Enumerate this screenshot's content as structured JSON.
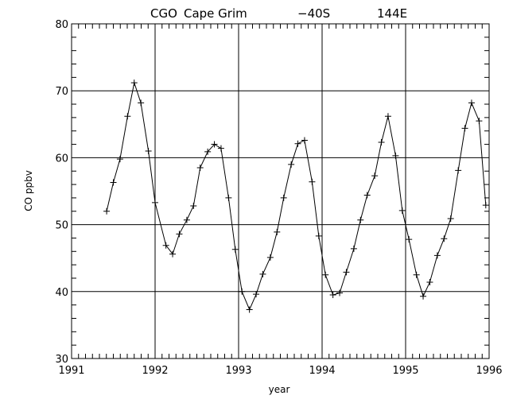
{
  "chart_data": {
    "type": "line",
    "title": {
      "station": "CGO",
      "name": "Cape Grim",
      "lat": "−40S",
      "lon": "144E"
    },
    "xlabel": "year",
    "ylabel": "CO ppbv",
    "xlim": [
      1991,
      1996
    ],
    "ylim": [
      30,
      80
    ],
    "xticks": [
      1991,
      1992,
      1993,
      1994,
      1995,
      1996
    ],
    "yticks": [
      30,
      40,
      50,
      60,
      70,
      80
    ],
    "xtick_labels": [
      "1991",
      "1992",
      "1993",
      "1994",
      "1995",
      "1996"
    ],
    "ytick_labels": [
      "30",
      "40",
      "50",
      "60",
      "70",
      "80"
    ],
    "grid": true,
    "marker": "plus",
    "series": [
      {
        "color": "#000000",
        "x": [
          1991.42,
          1991.5,
          1991.58,
          1991.67,
          1991.75,
          1991.83,
          1991.92,
          1992.0,
          1992.13,
          1992.21,
          1992.29,
          1992.38,
          1992.46,
          1992.54,
          1992.63,
          1992.71,
          1992.79,
          1992.88,
          1992.96,
          1993.04,
          1993.13,
          1993.21,
          1993.29,
          1993.38,
          1993.46,
          1993.54,
          1993.63,
          1993.71,
          1993.79,
          1993.88,
          1993.96,
          1994.04,
          1994.13,
          1994.21,
          1994.29,
          1994.38,
          1994.46,
          1994.54,
          1994.63,
          1994.71,
          1994.79,
          1994.88,
          1994.96,
          1995.04,
          1995.13,
          1995.21,
          1995.29,
          1995.38,
          1995.46,
          1995.54,
          1995.63,
          1995.71,
          1995.79,
          1995.88,
          1995.96
        ],
        "y": [
          52.0,
          56.3,
          59.8,
          66.2,
          71.2,
          68.2,
          61.0,
          53.3,
          46.9,
          45.6,
          48.6,
          50.7,
          52.8,
          58.5,
          60.9,
          62.0,
          61.4,
          54.0,
          46.3,
          40.0,
          37.3,
          39.6,
          42.6,
          45.1,
          48.9,
          54.0,
          59.0,
          62.1,
          62.6,
          56.4,
          48.3,
          42.5,
          39.5,
          39.8,
          42.9,
          46.4,
          50.7,
          54.4,
          57.3,
          62.3,
          66.2,
          60.3,
          52.1,
          47.8,
          42.5,
          39.3,
          41.4,
          45.4,
          47.9,
          50.9,
          58.1,
          64.4,
          68.2,
          65.5,
          52.9
        ]
      }
    ]
  }
}
